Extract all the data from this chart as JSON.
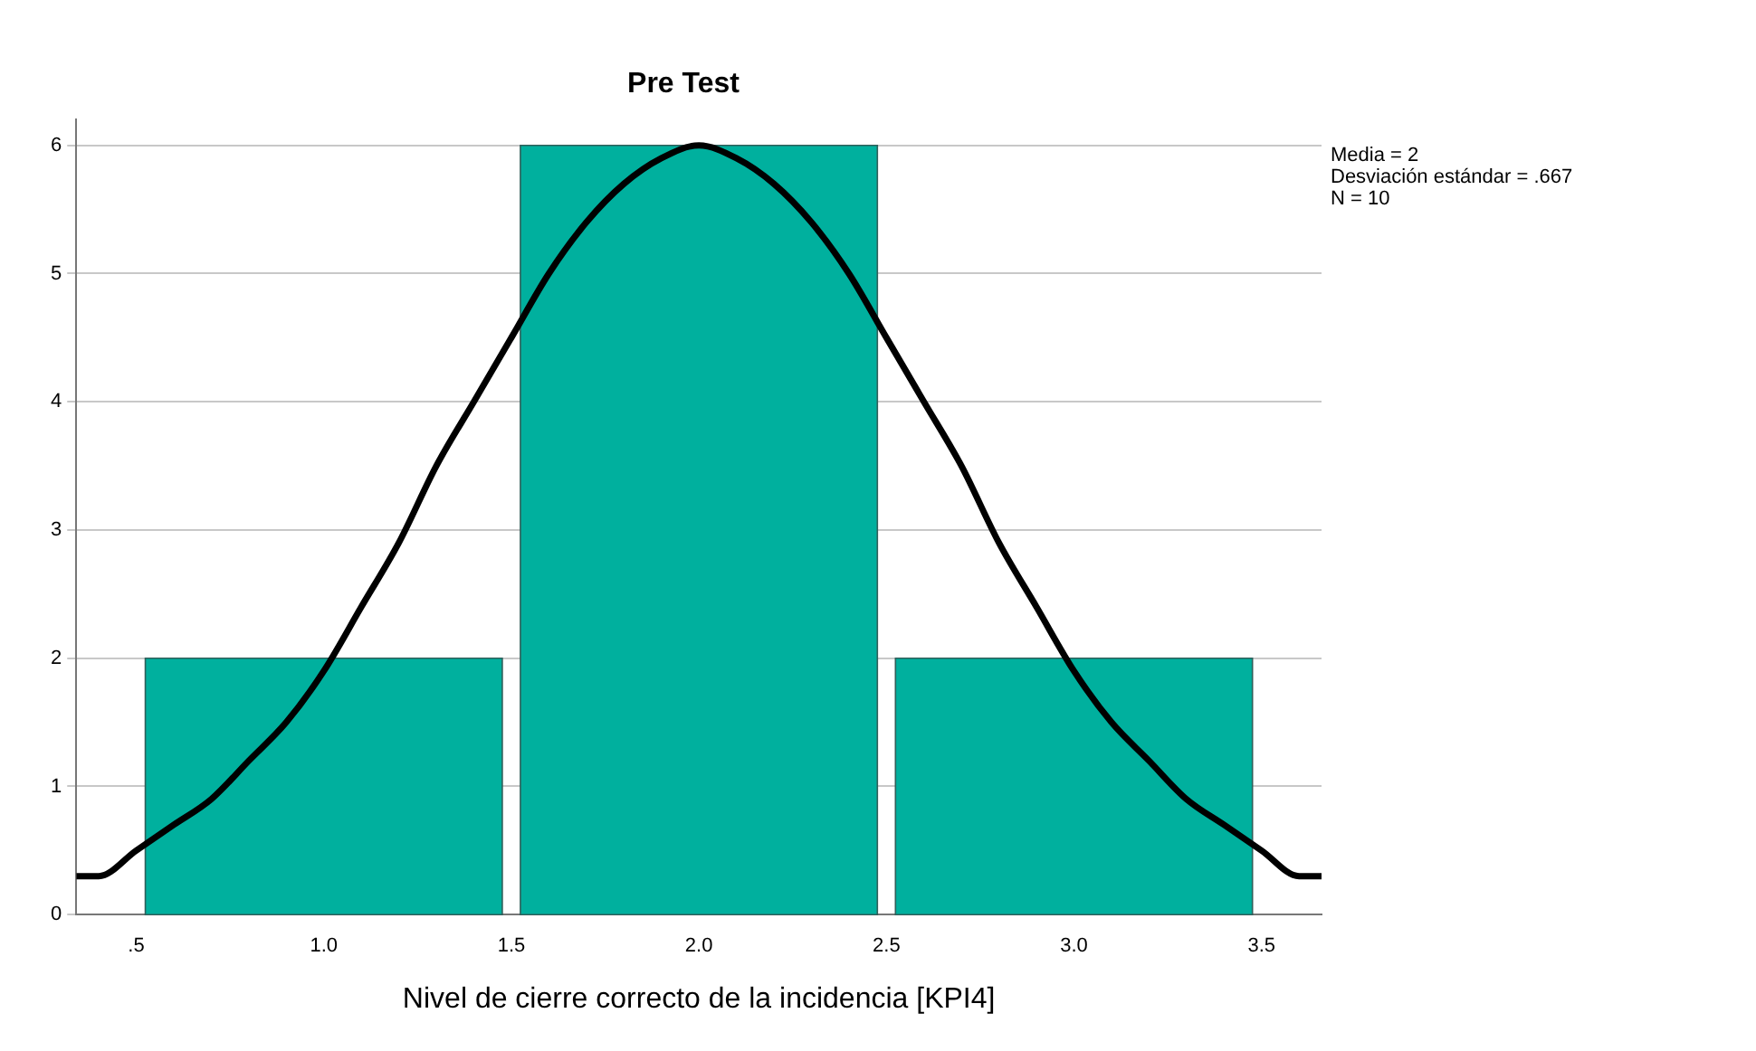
{
  "chart_data": {
    "type": "histogram",
    "title": "Pre Test",
    "xlabel": "Nivel de cierre correcto de la incidencia [KPI4]",
    "bins": [
      0.5,
      1.5,
      2.5,
      3.5
    ],
    "values": [
      2,
      6,
      2
    ],
    "color": "#00b09e",
    "series": [
      {
        "type": "line",
        "color": "#000000",
        "x": [
          0.34,
          0.4,
          0.5,
          0.6,
          0.7,
          0.8,
          0.9,
          1.0,
          1.1,
          1.2,
          1.3,
          1.4,
          1.5,
          1.6,
          1.7,
          1.8,
          1.9,
          2.0,
          2.1,
          2.2,
          2.3,
          2.4,
          2.5,
          2.6,
          2.7,
          2.8,
          2.9,
          3.0,
          3.1,
          3.2,
          3.3,
          3.4,
          3.5,
          3.6,
          3.66
        ],
        "values": [
          0.3,
          0.3,
          0.5,
          0.7,
          0.9,
          1.2,
          1.5,
          1.9,
          2.4,
          2.9,
          3.5,
          4.0,
          4.5,
          5.0,
          5.4,
          5.7,
          5.9,
          6.0,
          5.9,
          5.7,
          5.4,
          5.0,
          4.5,
          4.0,
          3.5,
          2.9,
          2.4,
          1.9,
          1.5,
          1.2,
          0.9,
          0.7,
          0.5,
          0.3,
          0.3
        ]
      }
    ],
    "xlim": [
      0.34,
      3.66
    ],
    "xticks": [
      {
        "value": 0.5,
        "label": ".5"
      },
      {
        "value": 1,
        "label": "1.0"
      },
      {
        "value": 1.5,
        "label": "1.5"
      },
      {
        "value": 2,
        "label": "2.0"
      },
      {
        "value": 2.5,
        "label": "2.5"
      },
      {
        "value": 3,
        "label": "3.0"
      },
      {
        "value": 3.5,
        "label": "3.5"
      }
    ],
    "ylim": [
      0,
      6.2
    ],
    "yticks": [
      0,
      1,
      2,
      3,
      4,
      5,
      6
    ],
    "grid": "y",
    "legend": false,
    "marker": "none",
    "line_style": "solid",
    "annotations": [
      "Media = 2",
      "Desviación estándar = .667",
      "N = 10"
    ]
  }
}
